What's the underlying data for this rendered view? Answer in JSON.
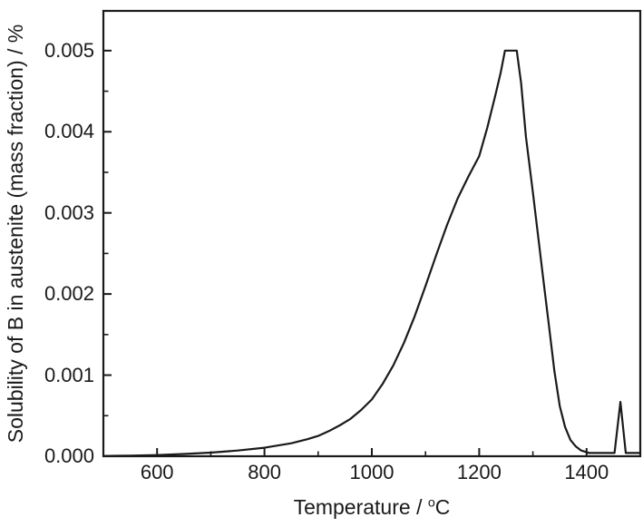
{
  "figure": {
    "background_color": "#ffffff",
    "frame_color": "#1a1a1a",
    "curve_color": "#1a1a1a"
  },
  "axis_display": {
    "x_prefix": "Temperature / ",
    "x_sup": "o",
    "x_unit": "C"
  },
  "chart_data": {
    "type": "line",
    "title": "",
    "xlabel": "Temperature / °C",
    "ylabel": "Solubility of B in austenite (mass fraction) / %",
    "xlim": [
      500,
      1500
    ],
    "ylim": [
      0,
      0.00549
    ],
    "grid": false,
    "legend": "none",
    "x_ticks_major": [
      600,
      800,
      1000,
      1200,
      1400
    ],
    "x_tick_labels": [
      "600",
      "800",
      "1000",
      "1200",
      "1400"
    ],
    "x_ticks_minor": [
      700,
      900,
      1100,
      1300
    ],
    "y_ticks_major": [
      0,
      0.001,
      0.002,
      0.003,
      0.004,
      0.005
    ],
    "y_tick_labels": [
      "0.000",
      "0.001",
      "0.002",
      "0.003",
      "0.004",
      "0.005"
    ],
    "y_ticks_minor": [
      0.0005,
      0.0015,
      0.0025,
      0.0035,
      0.0045
    ],
    "annotations": {
      "peak_plateau": {
        "x_range": [
          1248,
          1270
        ],
        "value": 0.005
      },
      "secondary_spike": {
        "x": 1463,
        "value": 0.00067
      }
    },
    "series": [
      {
        "name": "Solubility of B in austenite",
        "color": "#1a1a1a",
        "x": [
          500,
          550,
          600,
          650,
          700,
          750,
          800,
          850,
          880,
          900,
          920,
          940,
          960,
          980,
          1000,
          1020,
          1040,
          1060,
          1080,
          1100,
          1120,
          1140,
          1160,
          1180,
          1200,
          1215,
          1230,
          1240,
          1248,
          1270,
          1278,
          1287,
          1300,
          1310,
          1320,
          1330,
          1340,
          1350,
          1360,
          1370,
          1380,
          1390,
          1405,
          1420,
          1452,
          1463,
          1473,
          1500
        ],
        "y": [
          3e-06,
          8e-06,
          1.5e-05,
          2.8e-05,
          4.5e-05,
          7e-05,
          0.000105,
          0.00016,
          0.00021,
          0.00025,
          0.00031,
          0.00038,
          0.00046,
          0.00057,
          0.0007,
          0.00089,
          0.00112,
          0.0014,
          0.00173,
          0.0021,
          0.00248,
          0.00285,
          0.00318,
          0.00345,
          0.0037,
          0.00405,
          0.00445,
          0.00473,
          0.005,
          0.005,
          0.0046,
          0.00394,
          0.00325,
          0.0027,
          0.00215,
          0.0016,
          0.00105,
          0.00062,
          0.00036,
          0.0002,
          0.00012,
          7e-05,
          4e-05,
          4e-05,
          4e-05,
          0.00067,
          4e-05,
          4e-05
        ]
      }
    ]
  }
}
